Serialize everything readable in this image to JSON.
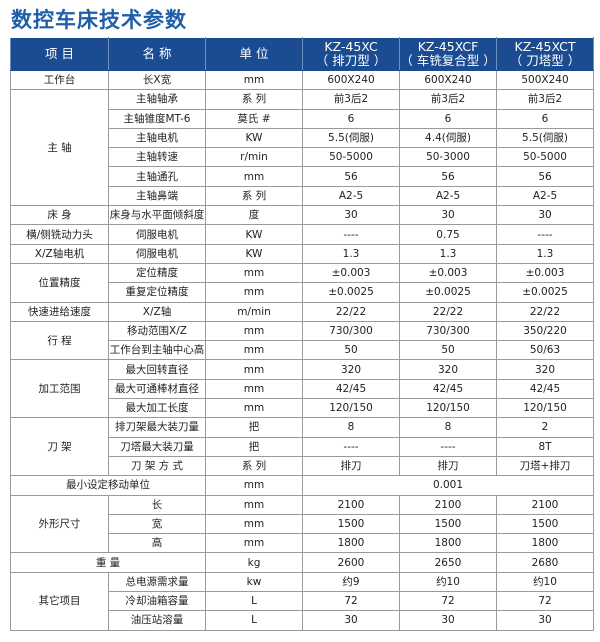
{
  "title": "数控车床技术参数",
  "header": {
    "item": "项 目",
    "name": "名 称",
    "unit": "单 位",
    "models": [
      {
        "model": "KZ-45XC",
        "type": "（ 排刀型 ）"
      },
      {
        "model": "KZ-45XCF",
        "type": "（ 车铣复合型 ）"
      },
      {
        "model": "KZ-45XCT",
        "type": "（ 刀塔型 ）"
      }
    ]
  },
  "groups": [
    {
      "label": "工作台",
      "items": [
        {
          "name": "长X宽",
          "unit": "mm",
          "values": [
            "600X240",
            "600X240",
            "500X240"
          ]
        }
      ]
    },
    {
      "label": "主 轴",
      "items": [
        {
          "name": "主轴轴承",
          "unit": "系 列",
          "values": [
            "前3后2",
            "前3后2",
            "前3后2"
          ]
        },
        {
          "name": "主轴锥度MT-6",
          "unit": "莫氏 #",
          "values": [
            "6",
            "6",
            "6"
          ]
        },
        {
          "name": "主轴电机",
          "unit": "KW",
          "values": [
            "5.5(伺服)",
            "4.4(伺服)",
            "5.5(伺服)"
          ]
        },
        {
          "name": "主轴转速",
          "unit": "r/min",
          "values": [
            "50-5000",
            "50-3000",
            "50-5000"
          ]
        },
        {
          "name": "主轴通孔",
          "unit": "mm",
          "values": [
            "56",
            "56",
            "56"
          ]
        },
        {
          "name": "主轴鼻端",
          "unit": "系 列",
          "values": [
            "A2-5",
            "A2-5",
            "A2-5"
          ]
        }
      ]
    },
    {
      "label": "床 身",
      "items": [
        {
          "name": "床身与水平面倾斜度",
          "unit": "度",
          "values": [
            "30",
            "30",
            "30"
          ]
        }
      ]
    },
    {
      "label": "横/侧铣动力头",
      "items": [
        {
          "name": "伺服电机",
          "unit": "KW",
          "values": [
            "----",
            "0.75",
            "----"
          ]
        }
      ]
    },
    {
      "label": "X/Z轴电机",
      "items": [
        {
          "name": "伺服电机",
          "unit": "KW",
          "values": [
            "1.3",
            "1.3",
            "1.3"
          ]
        }
      ]
    },
    {
      "label": "位置精度",
      "items": [
        {
          "name": "定位精度",
          "unit": "mm",
          "values": [
            "±0.003",
            "±0.003",
            "±0.003"
          ]
        },
        {
          "name": "重复定位精度",
          "unit": "mm",
          "values": [
            "±0.0025",
            "±0.0025",
            "±0.0025"
          ]
        }
      ]
    },
    {
      "label": "快速进给速度",
      "items": [
        {
          "name": "X/Z轴",
          "unit": "m/min",
          "values": [
            "22/22",
            "22/22",
            "22/22"
          ]
        }
      ]
    },
    {
      "label": "行 程",
      "items": [
        {
          "name": "移动范围X/Z",
          "unit": "mm",
          "values": [
            "730/300",
            "730/300",
            "350/220"
          ]
        },
        {
          "name": "工作台到主轴中心高",
          "unit": "mm",
          "values": [
            "50",
            "50",
            "50/63"
          ]
        }
      ]
    },
    {
      "label": "加工范围",
      "items": [
        {
          "name": "最大回转直径",
          "unit": "mm",
          "values": [
            "320",
            "320",
            "320"
          ]
        },
        {
          "name": "最大可通棒材直径",
          "unit": "mm",
          "values": [
            "42/45",
            "42/45",
            "42/45"
          ]
        },
        {
          "name": "最大加工长度",
          "unit": "mm",
          "values": [
            "120/150",
            "120/150",
            "120/150"
          ]
        }
      ]
    },
    {
      "label": "刀 架",
      "items": [
        {
          "name": "排刀架最大装刀量",
          "unit": "把",
          "values": [
            "8",
            "8",
            "2"
          ]
        },
        {
          "name": "刀塔最大装刀量",
          "unit": "把",
          "values": [
            "----",
            "----",
            "8T"
          ]
        },
        {
          "name": "刀 架 方 式",
          "unit": "系 列",
          "values": [
            "排刀",
            "排刀",
            "刀塔+排刀"
          ]
        }
      ]
    },
    {
      "label": "最小设定移动单位",
      "span_name": true,
      "items": [
        {
          "unit": "mm",
          "values": [
            "0.001"
          ]
        }
      ]
    },
    {
      "label": "外形尺寸",
      "items": [
        {
          "name": "长",
          "unit": "mm",
          "values": [
            "2100",
            "2100",
            "2100"
          ]
        },
        {
          "name": "宽",
          "unit": "mm",
          "values": [
            "1500",
            "1500",
            "1500"
          ]
        },
        {
          "name": "高",
          "unit": "mm",
          "values": [
            "1800",
            "1800",
            "1800"
          ]
        }
      ]
    },
    {
      "label": "重 量",
      "span_name": true,
      "items": [
        {
          "unit": "kg",
          "values": [
            "2600",
            "2650",
            "2680"
          ]
        }
      ]
    },
    {
      "label": "其它项目",
      "items": [
        {
          "name": "总电源需求量",
          "unit": "kw",
          "values": [
            "约9",
            "约10",
            "约10"
          ]
        },
        {
          "name": "冷却油箱容量",
          "unit": "L",
          "values": [
            "72",
            "72",
            "72"
          ]
        },
        {
          "name": "油压站溶量",
          "unit": "L",
          "values": [
            "30",
            "30",
            "30"
          ]
        }
      ]
    }
  ]
}
